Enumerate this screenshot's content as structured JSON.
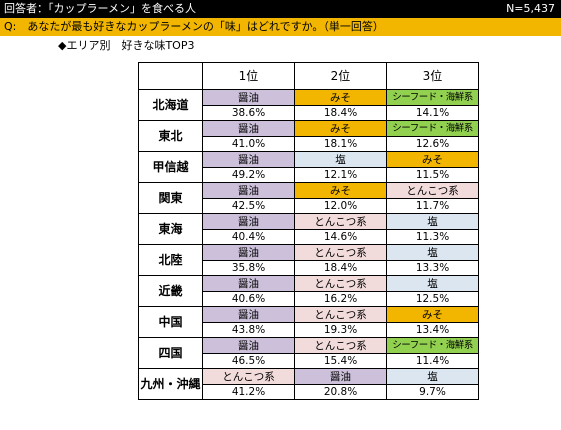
{
  "header": {
    "respondents": "回答者：「カップラーメン」を食べる人",
    "n": "N=5,437",
    "question": "Q:　あなたが最も好きなカップラーメンの「味」はどれですか。（単一回答）",
    "subtitle": "◆エリア別　好きな味TOP3"
  },
  "table": {
    "columns": [
      "1位",
      "2位",
      "3位"
    ],
    "rows": [
      {
        "region": "北海道",
        "cells": [
          {
            "flavor": "醤油",
            "pct": "38.6%",
            "color": "#ccc0da"
          },
          {
            "flavor": "みそ",
            "pct": "18.4%",
            "color": "#f2b600"
          },
          {
            "flavor": "シーフード・海鮮系",
            "pct": "14.1%",
            "color": "#92d050"
          }
        ]
      },
      {
        "region": "東北",
        "cells": [
          {
            "flavor": "醤油",
            "pct": "41.0%",
            "color": "#ccc0da"
          },
          {
            "flavor": "みそ",
            "pct": "18.1%",
            "color": "#f2b600"
          },
          {
            "flavor": "シーフード・海鮮系",
            "pct": "12.6%",
            "color": "#92d050"
          }
        ]
      },
      {
        "region": "甲信越",
        "cells": [
          {
            "flavor": "醤油",
            "pct": "49.2%",
            "color": "#ccc0da"
          },
          {
            "flavor": "塩",
            "pct": "12.1%",
            "color": "#dce6f1"
          },
          {
            "flavor": "みそ",
            "pct": "11.5%",
            "color": "#f2b600"
          }
        ]
      },
      {
        "region": "関東",
        "cells": [
          {
            "flavor": "醤油",
            "pct": "42.5%",
            "color": "#ccc0da"
          },
          {
            "flavor": "みそ",
            "pct": "12.0%",
            "color": "#f2b600"
          },
          {
            "flavor": "とんこつ系",
            "pct": "11.7%",
            "color": "#f2dcdb"
          }
        ]
      },
      {
        "region": "東海",
        "cells": [
          {
            "flavor": "醤油",
            "pct": "40.4%",
            "color": "#ccc0da"
          },
          {
            "flavor": "とんこつ系",
            "pct": "14.6%",
            "color": "#f2dcdb"
          },
          {
            "flavor": "塩",
            "pct": "11.3%",
            "color": "#dce6f1"
          }
        ]
      },
      {
        "region": "北陸",
        "cells": [
          {
            "flavor": "醤油",
            "pct": "35.8%",
            "color": "#ccc0da"
          },
          {
            "flavor": "とんこつ系",
            "pct": "18.4%",
            "color": "#f2dcdb"
          },
          {
            "flavor": "塩",
            "pct": "13.3%",
            "color": "#dce6f1"
          }
        ]
      },
      {
        "region": "近畿",
        "cells": [
          {
            "flavor": "醤油",
            "pct": "40.6%",
            "color": "#ccc0da"
          },
          {
            "flavor": "とんこつ系",
            "pct": "16.2%",
            "color": "#f2dcdb"
          },
          {
            "flavor": "塩",
            "pct": "12.5%",
            "color": "#dce6f1"
          }
        ]
      },
      {
        "region": "中国",
        "cells": [
          {
            "flavor": "醤油",
            "pct": "43.8%",
            "color": "#ccc0da"
          },
          {
            "flavor": "とんこつ系",
            "pct": "19.3%",
            "color": "#f2dcdb"
          },
          {
            "flavor": "みそ",
            "pct": "13.4%",
            "color": "#f2b600"
          }
        ]
      },
      {
        "region": "四国",
        "cells": [
          {
            "flavor": "醤油",
            "pct": "46.5%",
            "color": "#ccc0da"
          },
          {
            "flavor": "とんこつ系",
            "pct": "15.4%",
            "color": "#f2dcdb"
          },
          {
            "flavor": "シーフード・海鮮系",
            "pct": "11.4%",
            "color": "#92d050"
          }
        ]
      },
      {
        "region": "九州・沖縄",
        "cells": [
          {
            "flavor": "とんこつ系",
            "pct": "41.2%",
            "color": "#f2dcdb"
          },
          {
            "flavor": "醤油",
            "pct": "20.8%",
            "color": "#ccc0da"
          },
          {
            "flavor": "塩",
            "pct": "9.7%",
            "color": "#dce6f1"
          }
        ]
      }
    ]
  }
}
